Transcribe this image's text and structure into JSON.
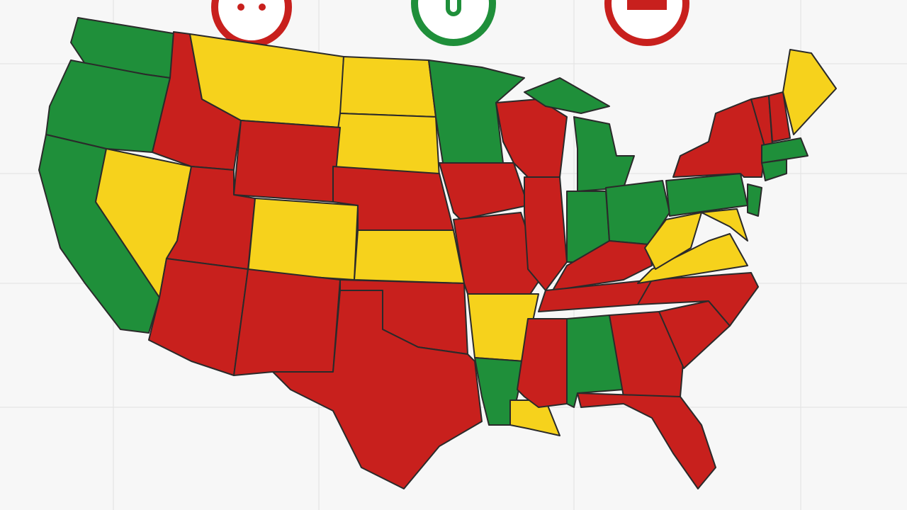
{
  "palette": [
    "#1f8f3a",
    "#c8201d",
    "#f6d21c"
  ]
}
